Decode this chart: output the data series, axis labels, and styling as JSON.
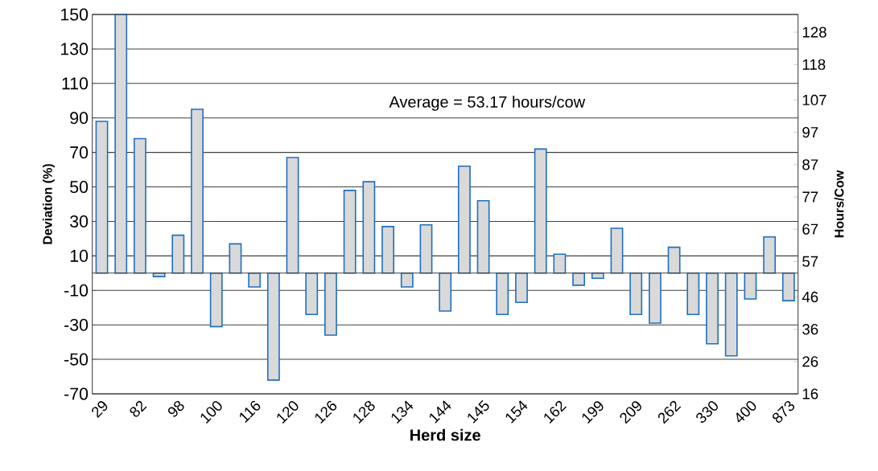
{
  "chart_data": {
    "type": "bar",
    "xlabel": "Herd size",
    "ylabel": "Deviation (%)",
    "y2label": "Hours/Cow",
    "annotations": [
      "Average = 53.17 hours/cow"
    ],
    "categories": [
      "29",
      null,
      "82",
      null,
      "98",
      null,
      "100",
      null,
      "116",
      null,
      "120",
      null,
      "126",
      null,
      "128",
      null,
      "134",
      null,
      "144",
      null,
      "145",
      null,
      "154",
      null,
      "162",
      null,
      "199",
      null,
      "209",
      null,
      "262",
      null,
      "330",
      null,
      "400",
      null,
      "873"
    ],
    "values": [
      88,
      150,
      78,
      -2,
      22,
      95,
      -31,
      17,
      -8,
      -62,
      67,
      -24,
      -36,
      48,
      53,
      27,
      -8,
      28,
      -22,
      62,
      42,
      -24,
      -17,
      72,
      11,
      -7,
      -3,
      26,
      -24,
      -29,
      15,
      -24,
      -41,
      -48,
      -15,
      21,
      -16
    ],
    "color": "#d9d9d9",
    "ylim": [
      -70,
      150
    ],
    "yticks": [
      -70,
      -50,
      -30,
      -10,
      10,
      30,
      50,
      70,
      90,
      110,
      130,
      150
    ],
    "y2lim": [
      16,
      133.5
    ],
    "y2ticks": [
      16,
      26,
      36,
      46,
      57,
      67,
      77,
      87,
      97,
      107,
      118,
      128
    ],
    "grid": "y"
  }
}
